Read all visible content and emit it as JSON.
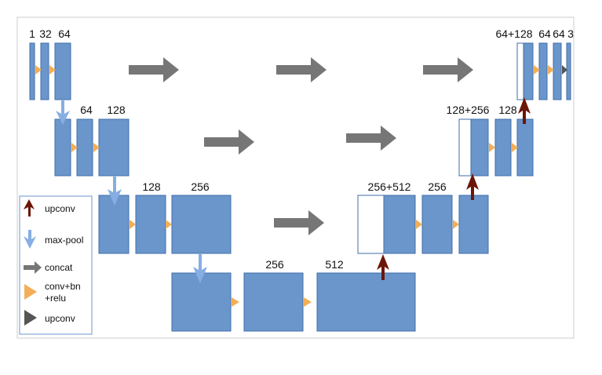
{
  "colors": {
    "block_fill": "#6b96cc",
    "block_stroke": "#3f6ea8",
    "concat_arrow": "#767676",
    "conv_arrow": "#f3ae57",
    "pool_arrow": "#86aee3",
    "upconv_arrow": "#6b1608",
    "final_arrow": "#555555",
    "frame": "#cccccc"
  },
  "labels": {
    "l1_ch1": "1",
    "l1_ch2": "32",
    "l1_ch3": "64",
    "l2_ch1": "64",
    "l2_ch2": "128",
    "l3_ch1": "128",
    "l3_ch2": "256",
    "l4_ch1": "256",
    "l4_ch2": "512",
    "d3_ch1": "256+512",
    "d3_ch2": "256",
    "d2_ch1": "128+256",
    "d2_ch2": "128",
    "d1_ch1": "64+128",
    "d1_ch2": "64",
    "d1_ch3": "64",
    "d1_ch4": "3"
  },
  "legend": [
    {
      "icon": "upconv-arrow-icon",
      "text": [
        "upconv"
      ]
    },
    {
      "icon": "max-pool-arrow-icon",
      "text": [
        "max-pool"
      ]
    },
    {
      "icon": "concat-arrow-icon",
      "text": [
        "concat"
      ]
    },
    {
      "icon": "conv-bn-relu-icon",
      "text": [
        "conv+bn",
        "+relu"
      ]
    },
    {
      "icon": "final-conv-icon",
      "text": [
        "upconv"
      ]
    }
  ]
}
